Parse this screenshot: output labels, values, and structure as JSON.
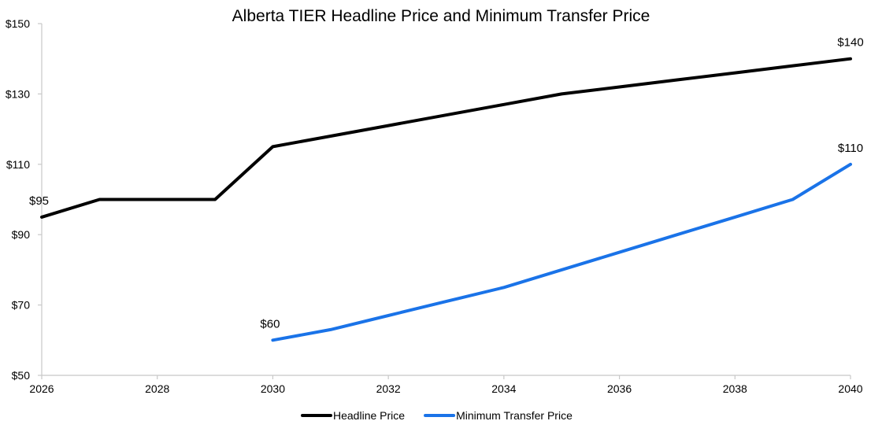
{
  "chart_data": {
    "type": "line",
    "title": "Alberta TIER Headline Price and Minimum Transfer Price",
    "xlabel": "",
    "ylabel": "",
    "xlim": [
      2026,
      2040
    ],
    "ylim": [
      50,
      150
    ],
    "x_ticks": [
      2026,
      2028,
      2030,
      2032,
      2034,
      2036,
      2038,
      2040
    ],
    "x_tick_labels": [
      "2026",
      "2028",
      "2030",
      "2032",
      "2034",
      "2036",
      "2038",
      "2040"
    ],
    "y_ticks": [
      50,
      70,
      90,
      110,
      130,
      150
    ],
    "y_tick_labels": [
      "$50",
      "$70",
      "$90",
      "$110",
      "$130",
      "$150"
    ],
    "grid": false,
    "legend_position": "bottom",
    "series": [
      {
        "name": "Headline Price",
        "color": "#000000",
        "points": [
          {
            "x": 2026,
            "y": 95
          },
          {
            "x": 2027,
            "y": 100
          },
          {
            "x": 2028,
            "y": 100
          },
          {
            "x": 2029,
            "y": 100
          },
          {
            "x": 2030,
            "y": 115
          },
          {
            "x": 2031,
            "y": 118
          },
          {
            "x": 2032,
            "y": 121
          },
          {
            "x": 2033,
            "y": 124
          },
          {
            "x": 2034,
            "y": 127
          },
          {
            "x": 2035,
            "y": 130
          },
          {
            "x": 2036,
            "y": 132
          },
          {
            "x": 2037,
            "y": 134
          },
          {
            "x": 2038,
            "y": 136
          },
          {
            "x": 2039,
            "y": 138
          },
          {
            "x": 2040,
            "y": 140
          }
        ]
      },
      {
        "name": "Minimum Transfer Price",
        "color": "#1a73e8",
        "points": [
          {
            "x": 2030,
            "y": 60
          },
          {
            "x": 2031,
            "y": 63
          },
          {
            "x": 2032,
            "y": 67
          },
          {
            "x": 2033,
            "y": 71
          },
          {
            "x": 2034,
            "y": 75
          },
          {
            "x": 2035,
            "y": 80
          },
          {
            "x": 2036,
            "y": 85
          },
          {
            "x": 2037,
            "y": 90
          },
          {
            "x": 2038,
            "y": 95
          },
          {
            "x": 2039,
            "y": 100
          },
          {
            "x": 2040,
            "y": 110
          }
        ]
      }
    ],
    "annotations": [
      {
        "series": 0,
        "x": 2026,
        "y": 95,
        "text": "$95"
      },
      {
        "series": 0,
        "x": 2040,
        "y": 140,
        "text": "$140"
      },
      {
        "series": 1,
        "x": 2030,
        "y": 60,
        "text": "$60"
      },
      {
        "series": 1,
        "x": 2040,
        "y": 110,
        "text": "$110"
      }
    ]
  }
}
